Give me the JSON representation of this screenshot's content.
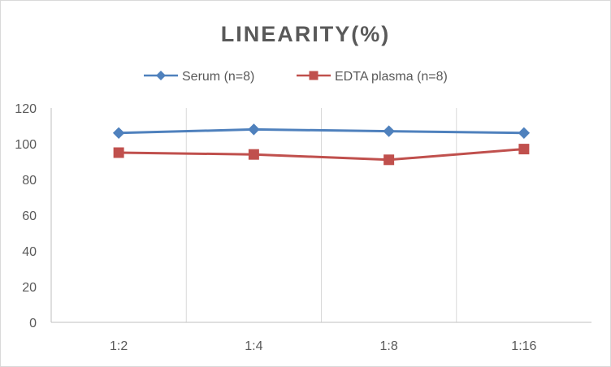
{
  "chart_data": {
    "type": "line",
    "title": "LINEARITY(%)",
    "xlabel": "",
    "ylabel": "",
    "categories": [
      "1:2",
      "1:4",
      "1:8",
      "1:16"
    ],
    "ylim": [
      0,
      120
    ],
    "yticks": [
      0,
      20,
      40,
      60,
      80,
      100,
      120
    ],
    "grid": "vertical",
    "legend_position": "top",
    "series": [
      {
        "name": "Serum (n=8)",
        "values": [
          106,
          108,
          107,
          106
        ],
        "color": "#4f81bd",
        "marker": "diamond"
      },
      {
        "name": "EDTA plasma (n=8)",
        "values": [
          95,
          94,
          91,
          97
        ],
        "color": "#c0504d",
        "marker": "square"
      }
    ]
  }
}
